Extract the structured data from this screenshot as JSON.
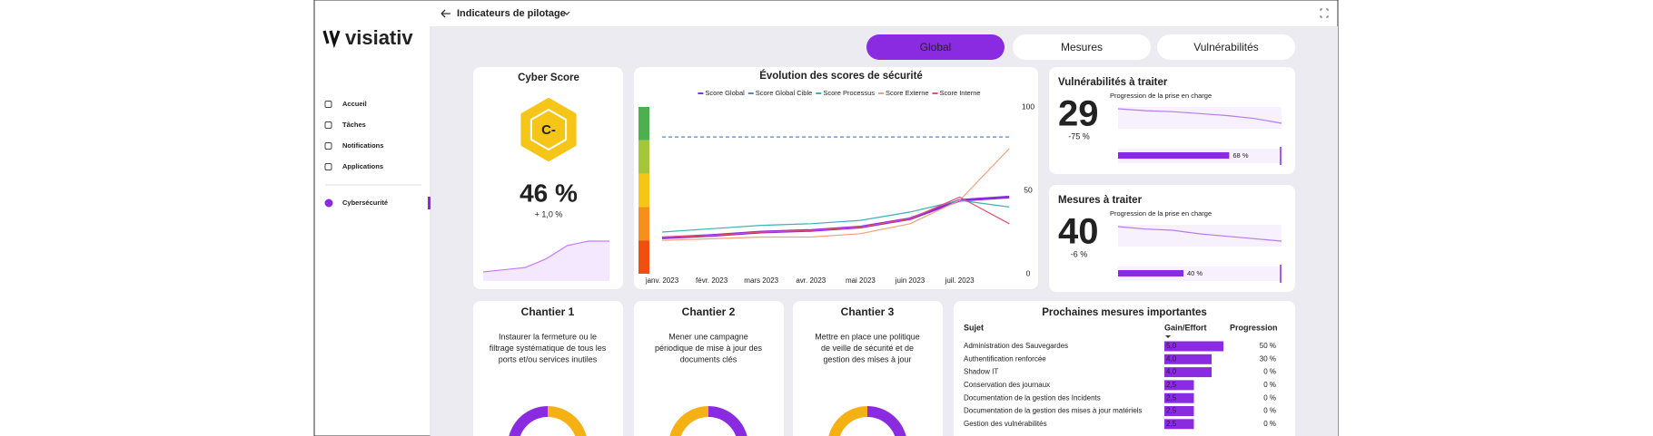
{
  "header": {
    "title": "Indicateurs de pilotage"
  },
  "sidebar": {
    "logo": "visiativ",
    "items": [
      "Accueil",
      "Tâches",
      "Notifications",
      "Applications"
    ],
    "active": "Cybersécurité"
  },
  "tabs": [
    "Global",
    "Mesures",
    "Vulnérabilités"
  ],
  "cyber_score": {
    "title": "Cyber Score",
    "grade": "C-",
    "value_label": "46 %",
    "change": "+ 1,0 %",
    "trend": [
      20,
      22,
      24,
      32,
      44,
      48,
      48
    ]
  },
  "chart_data": {
    "type": "line",
    "title": "Évolution des scores de sécurité",
    "categories": [
      "janv. 2023",
      "févr. 2023",
      "mars 2023",
      "avr. 2023",
      "mai 2023",
      "juin 2023",
      "juil. 2023",
      null
    ],
    "series": [
      {
        "name": "Score Global",
        "color": "#8a2be2",
        "width": 3,
        "values": [
          21.5,
          23,
          25,
          26,
          28,
          33,
          44,
          46
        ]
      },
      {
        "name": "Score Global Cible",
        "color": "#4a8ad9",
        "width": 1.2,
        "dash": true,
        "values": [
          82,
          82,
          82,
          82,
          82,
          82,
          82,
          82
        ]
      },
      {
        "name": "Score Processus",
        "color": "#3fb0b8",
        "width": 1.2,
        "values": [
          25,
          27,
          29,
          30,
          32,
          37,
          44,
          40
        ]
      },
      {
        "name": "Score Externe",
        "color": "#f4a07a",
        "width": 1.2,
        "values": [
          20,
          21,
          22,
          22,
          24,
          30,
          44,
          75
        ]
      },
      {
        "name": "Score Interne",
        "color": "#e8506a",
        "width": 1.2,
        "values": [
          22,
          23,
          25,
          26,
          28,
          33,
          46,
          30
        ]
      }
    ],
    "bands": [
      {
        "from": 80,
        "to": 100,
        "color": "#4caf50"
      },
      {
        "from": 60,
        "to": 80,
        "color": "#a4c639"
      },
      {
        "from": 40,
        "to": 60,
        "color": "#f5c518"
      },
      {
        "from": 20,
        "to": 40,
        "color": "#f5901e"
      },
      {
        "from": 0,
        "to": 20,
        "color": "#f0500f"
      }
    ],
    "ylim": [
      0,
      100
    ],
    "yticks": [
      0,
      50,
      100
    ],
    "legend": "top"
  },
  "vulnerabilites": {
    "title": "Vulnérabilités à traiter",
    "count": 29,
    "change": "-75 %",
    "subtitle": "Progression de la prise en charge",
    "progress": 68,
    "progress_label": "68 %",
    "trend": [
      100,
      98,
      97,
      95,
      93,
      90,
      85
    ]
  },
  "mesures": {
    "title": "Mesures à traiter",
    "count": 40,
    "change": "-6 %",
    "subtitle": "Progression de la prise en charge",
    "progress": 40,
    "progress_label": "40 %",
    "trend": [
      40,
      39,
      38.5,
      37,
      36,
      35,
      34
    ]
  },
  "chantiers": [
    {
      "title": "Chantier 1",
      "text": [
        "Instaurer la fermeture ou le",
        "filtrage systématique de tous les",
        "ports et/ou services inutiles"
      ]
    },
    {
      "title": "Chantier 2",
      "text": [
        "Mener une campagne",
        "périodique de mise à jour des",
        "documents clés"
      ]
    },
    {
      "title": "Chantier 3",
      "text": [
        "Mettre en place une politique",
        "de veille de sécurité et de",
        "gestion des mises à jour"
      ]
    }
  ],
  "prochaines": {
    "title": "Prochaines mesures importantes",
    "columns": [
      "Sujet",
      "Gain/Effort",
      "Progression"
    ],
    "rows": [
      {
        "sujet": "Administration des Sauvegardes",
        "gain": 5.0,
        "gain_label": "5,0",
        "progression": "50 %"
      },
      {
        "sujet": "Authentification renforcée",
        "gain": 4.0,
        "gain_label": "4,0",
        "progression": "30 %"
      },
      {
        "sujet": "Shadow IT",
        "gain": 4.0,
        "gain_label": "4,0",
        "progression": "0 %"
      },
      {
        "sujet": "Conservation des journaux",
        "gain": 2.5,
        "gain_label": "2,5",
        "progression": "0 %"
      },
      {
        "sujet": "Documentation de la gestion des Incidents",
        "gain": 2.5,
        "gain_label": "2,5",
        "progression": "0 %"
      },
      {
        "sujet": "Documentation de la gestion des mises à jour matériels",
        "gain": 2.5,
        "gain_label": "2,5",
        "progression": "0 %"
      },
      {
        "sujet": "Gestion des vulnérabilités",
        "gain": 2.5,
        "gain_label": "2,5",
        "progression": "0 %"
      }
    ]
  }
}
